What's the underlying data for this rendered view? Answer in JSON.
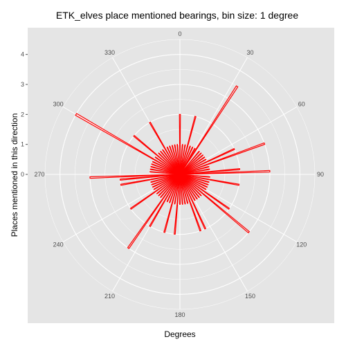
{
  "chart_data": {
    "type": "bar",
    "coordinate_system": "polar",
    "title": "ETK_elves place mentioned bearings, bin size: 1 degree",
    "xlabel": "Degrees",
    "ylabel": "Places mentioned in this direction",
    "angle_ticks": [
      "0",
      "30",
      "60",
      "90",
      "120",
      "150",
      "180",
      "210",
      "240",
      "270",
      "300",
      "330"
    ],
    "radial_ticks": [
      "0",
      "1",
      "2",
      "3",
      "4"
    ],
    "radial_lim": [
      0,
      4.5
    ],
    "grid": true,
    "bar_color": "#ff0000",
    "panel_color": "#e5e5e5",
    "grid_color": "#ffffff",
    "series": [
      {
        "x": [
          0,
          5,
          10,
          15,
          20,
          25,
          30,
          33,
          40,
          45,
          50,
          55,
          60,
          65,
          70,
          75,
          80,
          85,
          88,
          95,
          100,
          105,
          110,
          115,
          120,
          125,
          130,
          135,
          140,
          145,
          150,
          155,
          160,
          165,
          170,
          175,
          180,
          185,
          190,
          195,
          200,
          205,
          210,
          215,
          220,
          225,
          230,
          235,
          240,
          245,
          250,
          255,
          260,
          265,
          268,
          275,
          280,
          285,
          290,
          295,
          300,
          305,
          310,
          315,
          320,
          325,
          330,
          335,
          340,
          345,
          350,
          355
        ],
        "values": [
          2,
          1,
          1,
          2,
          1,
          1,
          1,
          3.5,
          1,
          1,
          1,
          1,
          1,
          2,
          3,
          1,
          1,
          2,
          3,
          1,
          2,
          1,
          1,
          1,
          1,
          2,
          3,
          1,
          1,
          1,
          1,
          2,
          2,
          1,
          1,
          1,
          1,
          2,
          1,
          2,
          1,
          1,
          2,
          3,
          1,
          1,
          1,
          2,
          1,
          1,
          1,
          1,
          2,
          2,
          3,
          1,
          1,
          1,
          1,
          1,
          4,
          1,
          2,
          1,
          1,
          1,
          2,
          1,
          1,
          1,
          1,
          1
        ]
      }
    ]
  }
}
